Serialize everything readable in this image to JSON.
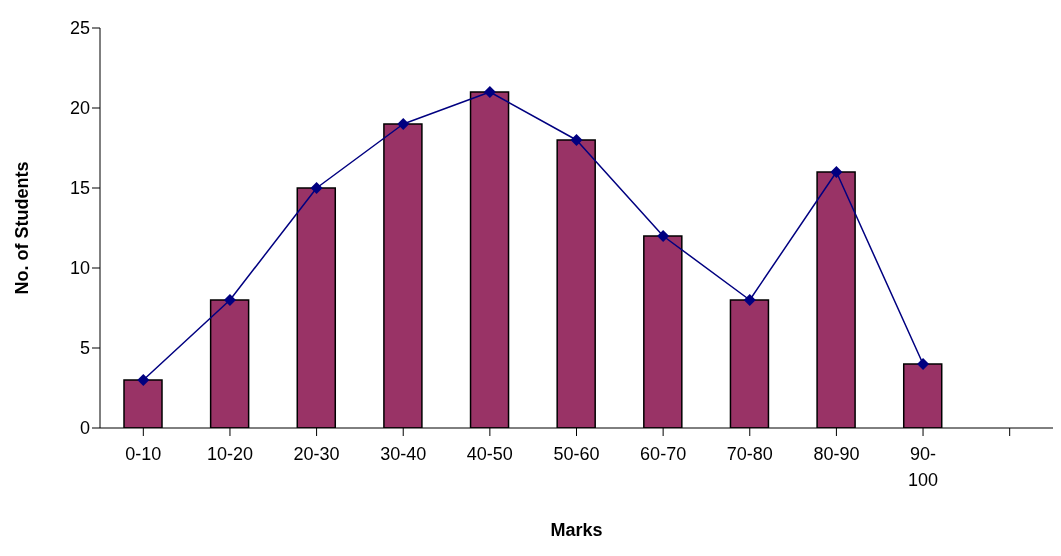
{
  "chart_data": {
    "type": "bar",
    "xlabel": "Marks",
    "ylabel": "No. of Students",
    "categories": [
      "0-10",
      "10-20",
      "20-30",
      "30-40",
      "40-50",
      "50-60",
      "60-70",
      "70-80",
      "80-90",
      "90-100",
      null
    ],
    "series": [
      {
        "color": "#993366",
        "values": [
          3,
          8,
          15,
          19,
          21,
          18,
          12,
          8,
          16,
          4,
          null
        ]
      },
      {
        "type": "line",
        "color": "#000080",
        "values": [
          3,
          8,
          15,
          19,
          21,
          18,
          12,
          8,
          16,
          4,
          null
        ]
      }
    ],
    "ylim": [
      0,
      25
    ],
    "yticks": [
      0,
      5,
      10,
      15,
      20,
      25
    ],
    "grid": false,
    "legend": false,
    "marker": "diamond"
  }
}
